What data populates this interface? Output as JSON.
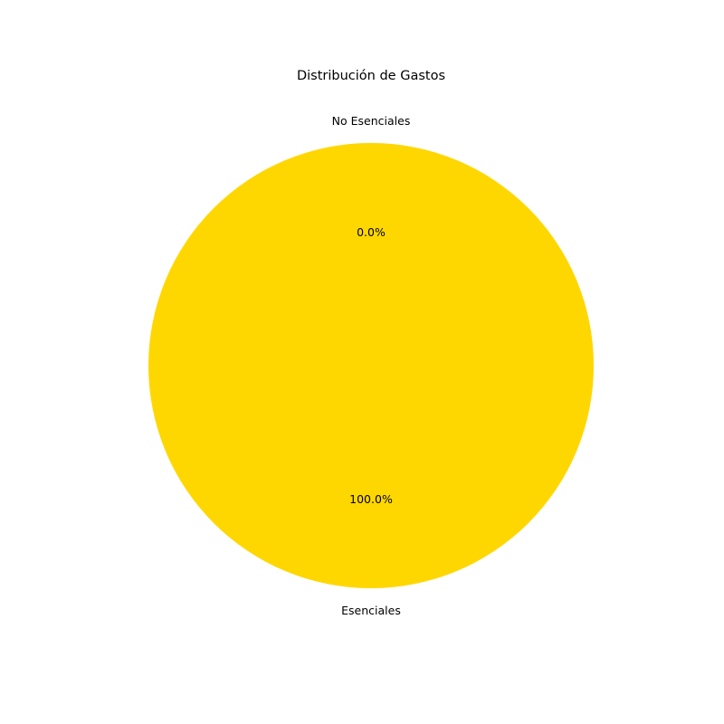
{
  "chart_data": {
    "type": "pie",
    "title": "Distribución de Gastos",
    "categories": [
      "Esenciales",
      "No Esenciales"
    ],
    "values": [
      100.0,
      0.0
    ],
    "percent_labels": [
      "100.0%",
      "0.0%"
    ],
    "colors": [
      "#ffd700",
      "#87ceeb"
    ],
    "start_angle_deg": 90,
    "direction": "counterclockwise",
    "legend": "none"
  }
}
